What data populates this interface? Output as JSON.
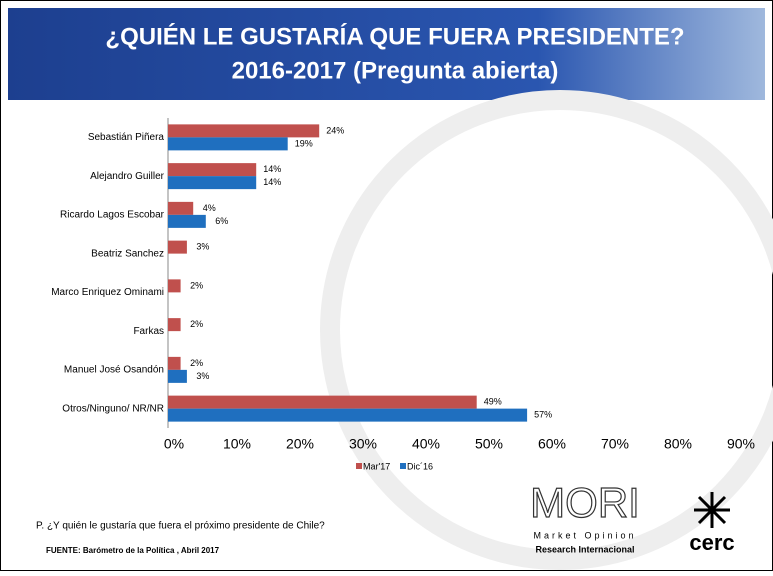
{
  "chart_data": {
    "type": "bar",
    "orientation": "horizontal",
    "title": "¿QUIÉN LE GUSTARÍA  QUE FUERA PRESIDENTE?",
    "subtitle": "2016-2017  (Pregunta abierta)",
    "categories": [
      "Sebastián Piñera",
      "Alejandro Guiller",
      "Ricardo Lagos Escobar",
      "Beatriz Sanchez",
      "Marco Enriquez Ominami",
      "Farkas",
      "Manuel José Osandón",
      "Otros/Ninguno/ NR/NR"
    ],
    "series": [
      {
        "name": "Mar'17",
        "color": "#c0504d",
        "values": [
          24,
          14,
          4,
          3,
          2,
          2,
          2,
          49
        ],
        "value_labels": [
          "24%",
          "14%",
          "4%",
          "3%",
          "2%",
          "2%",
          "2%",
          "49%"
        ]
      },
      {
        "name": "Dic´16",
        "color": "#1f6fbf",
        "values": [
          19,
          14,
          6,
          null,
          null,
          null,
          3,
          57
        ],
        "value_labels": [
          "19%",
          "14%",
          "6%",
          null,
          null,
          null,
          "3%",
          "57%"
        ]
      }
    ],
    "xlim": [
      0,
      90
    ],
    "xticks": [
      {
        "value": 0,
        "label": "0%"
      },
      {
        "value": 10,
        "label": "10%"
      },
      {
        "value": 20,
        "label": "20%"
      },
      {
        "value": 30,
        "label": "30%"
      },
      {
        "value": 40,
        "label": "40%"
      },
      {
        "value": 50,
        "label": "50%"
      },
      {
        "value": 60,
        "label": "60%"
      },
      {
        "value": 70,
        "label": "70%"
      },
      {
        "value": 80,
        "label": "80%"
      },
      {
        "value": 90,
        "label": "90%"
      }
    ],
    "legend": "bottom"
  },
  "notes": {
    "question": "P. ¿Y quién le gustaría que fuera el próximo presidente de Chile?",
    "source": "FUENTE: Barómetro de la Política , Abril 2017"
  },
  "logos": {
    "mori": "MORI",
    "mori_line1": "Market Opinion",
    "mori_line2": "Research Internacional",
    "cerc": "cerc"
  }
}
